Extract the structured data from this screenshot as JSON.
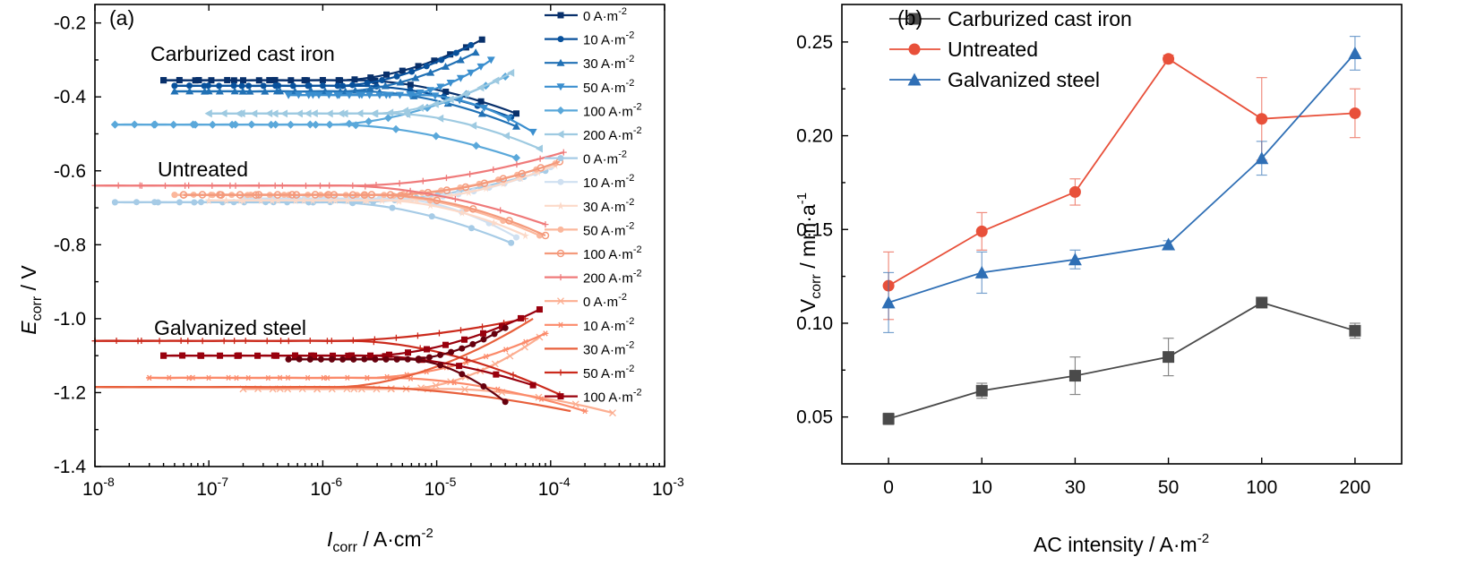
{
  "chart_data": [
    {
      "type": "line",
      "panel_label": "(a)",
      "xlabel_main": "I",
      "xlabel_sub": "corr",
      "xlabel_unit": " / A·cm",
      "xlabel_exp": "-2",
      "ylabel_main": "E",
      "ylabel_sub": "corr",
      "ylabel_unit": " / V",
      "x_scale": "log",
      "xlim": [
        1e-08,
        0.001
      ],
      "ylim": [
        -1.4,
        -0.15
      ],
      "x_ticks": [
        {
          "value": 1e-08,
          "base": "10",
          "exp": "-8"
        },
        {
          "value": 1e-07,
          "base": "10",
          "exp": "-7"
        },
        {
          "value": 1e-06,
          "base": "10",
          "exp": "-6"
        },
        {
          "value": 1e-05,
          "base": "10",
          "exp": "-5"
        },
        {
          "value": 0.0001,
          "base": "10",
          "exp": "-4"
        },
        {
          "value": 0.001,
          "base": "10",
          "exp": "-3"
        }
      ],
      "y_ticks": [
        {
          "value": -0.2,
          "label": "-0.2"
        },
        {
          "value": -0.4,
          "label": "-0.4"
        },
        {
          "value": -0.6,
          "label": "-0.6"
        },
        {
          "value": -0.8,
          "label": "-0.8"
        },
        {
          "value": -1.0,
          "label": "-1.0"
        },
        {
          "value": -1.2,
          "label": "-1.2"
        },
        {
          "value": -1.4,
          "label": "-1.4"
        }
      ],
      "legend_position": "right",
      "groups": [
        {
          "name": "Carburized cast iron",
          "label_anchor": [
            1.5e-08,
            -0.26
          ],
          "series": [
            {
              "label": "0 A·m",
              "exp": "-2",
              "color": "#08306b",
              "marker": "square",
              "icorr_min": 4e-08,
              "ecorr": -0.355,
              "anodic_end": [
                2.5e-05,
                -0.245
              ],
              "cathodic_end": [
                5e-05,
                -0.445
              ]
            },
            {
              "label": "10 A·m",
              "exp": "-2",
              "color": "#08519c",
              "marker": "circle",
              "icorr_min": 5e-08,
              "ecorr": -0.37,
              "anodic_end": [
                2e-05,
                -0.26
              ],
              "cathodic_end": [
                4.5e-05,
                -0.455
              ]
            },
            {
              "label": "30 A·m",
              "exp": "-2",
              "color": "#2171b5",
              "marker": "triangle-up",
              "icorr_min": 5e-08,
              "ecorr": -0.385,
              "anodic_end": [
                2.2e-05,
                -0.28
              ],
              "cathodic_end": [
                5e-05,
                -0.48
              ]
            },
            {
              "label": "50 A·m",
              "exp": "-2",
              "color": "#3b8fcf",
              "marker": "triangle-down",
              "icorr_min": 5e-07,
              "ecorr": -0.395,
              "anodic_end": [
                3e-05,
                -0.3
              ],
              "cathodic_end": [
                7e-05,
                -0.495
              ]
            },
            {
              "label": "100 A·m",
              "exp": "-2",
              "color": "#5aa8da",
              "marker": "diamond",
              "icorr_min": 1.5e-08,
              "ecorr": -0.475,
              "anodic_end": [
                4e-05,
                -0.345
              ],
              "cathodic_end": [
                5e-05,
                -0.565
              ]
            },
            {
              "label": "200 A·m",
              "exp": "-2",
              "color": "#9ecae1",
              "marker": "triangle-left",
              "icorr_min": 1e-07,
              "ecorr": -0.445,
              "anodic_end": [
                4.5e-05,
                -0.335
              ],
              "cathodic_end": [
                8e-05,
                -0.54
              ]
            }
          ]
        },
        {
          "name": "Untreated",
          "label_anchor": [
            1.8e-08,
            -0.57
          ],
          "series": [
            {
              "label": "0 A·m",
              "exp": "-2",
              "color": "#a6cbe6",
              "marker": "circle",
              "icorr_min": 1.5e-08,
              "ecorr": -0.685,
              "anodic_end": [
                9e-05,
                -0.6
              ],
              "cathodic_end": [
                4.5e-05,
                -0.795
              ]
            },
            {
              "label": "10 A·m",
              "exp": "-2",
              "color": "#cfe0f1",
              "marker": "circle",
              "icorr_min": 2e-07,
              "ecorr": -0.675,
              "anodic_end": [
                0.0001,
                -0.59
              ],
              "cathodic_end": [
                5e-05,
                -0.78
              ]
            },
            {
              "label": "30 A·m",
              "exp": "-2",
              "color": "#fcd9c8",
              "marker": "star",
              "icorr_min": 1e-07,
              "ecorr": -0.68,
              "anodic_end": [
                0.00011,
                -0.585
              ],
              "cathodic_end": [
                6e-05,
                -0.775
              ]
            },
            {
              "label": "50 A·m",
              "exp": "-2",
              "color": "#fbb79c",
              "marker": "circle",
              "icorr_min": 5e-08,
              "ecorr": -0.665,
              "anodic_end": [
                0.00011,
                -0.58
              ],
              "cathodic_end": [
                8e-05,
                -0.775
              ]
            },
            {
              "label": "100 A·m",
              "exp": "-2",
              "color": "#f49a7c",
              "marker": "circle-open",
              "icorr_min": 6e-08,
              "ecorr": -0.665,
              "anodic_end": [
                0.00012,
                -0.575
              ],
              "cathodic_end": [
                9e-05,
                -0.775
              ]
            },
            {
              "label": "200 A·m",
              "exp": "-2",
              "color": "#ef7a7a",
              "marker": "plus",
              "icorr_min": 1e-08,
              "ecorr": -0.64,
              "anodic_end": [
                0.00013,
                -0.55
              ],
              "cathodic_end": [
                9e-05,
                -0.745
              ]
            }
          ]
        },
        {
          "name": "Galvanized steel",
          "label_anchor": [
            1.8e-08,
            -1.02
          ],
          "series": [
            {
              "label": "0 A·m",
              "exp": "-2",
              "color": "#fcae91",
              "marker": "x",
              "icorr_min": 2e-07,
              "ecorr": -1.19,
              "anodic_end": [
                8e-05,
                -1.05
              ],
              "cathodic_end": [
                0.00035,
                -1.255
              ]
            },
            {
              "label": "10 A·m",
              "exp": "-2",
              "color": "#fb8a6a",
              "marker": "asterisk",
              "icorr_min": 3e-08,
              "ecorr": -1.16,
              "anodic_end": [
                9e-05,
                -1.04
              ],
              "cathodic_end": [
                0.0002,
                -1.25
              ]
            },
            {
              "label": "30 A·m",
              "exp": "-2",
              "color": "#e8603c",
              "marker": "line",
              "icorr_min": 1e-08,
              "ecorr": -1.185,
              "anodic_end": [
                7e-05,
                -1.0
              ],
              "cathodic_end": [
                0.00015,
                -1.25
              ]
            },
            {
              "label": "50 A·m",
              "exp": "-2",
              "color": "#cb2a1c",
              "marker": "plus",
              "icorr_min": 1e-08,
              "ecorr": -1.06,
              "anodic_end": [
                6e-05,
                -1.0
              ],
              "cathodic_end": [
                0.00012,
                -1.205
              ]
            },
            {
              "label": "100 A·m",
              "exp": "-2",
              "color": "#99000d",
              "marker": "square",
              "icorr_min": 4e-08,
              "ecorr": -1.1,
              "anodic_end": [
                8e-05,
                -0.975
              ],
              "cathodic_end": [
                7e-05,
                -1.18
              ]
            },
            {
              "label": "",
              "exp": "",
              "color": "#67000d",
              "marker": "circle",
              "icorr_min": 5e-07,
              "ecorr": -1.11,
              "anodic_end": [
                4e-05,
                -1.025
              ],
              "cathodic_end": [
                4e-05,
                -1.225
              ]
            }
          ]
        }
      ]
    },
    {
      "type": "line",
      "panel_label": "(b)",
      "categories": [
        "0",
        "10",
        "30",
        "50",
        "100",
        "200"
      ],
      "xlabel": "AC intensity / A·m",
      "xlabel_exp": "-2",
      "ylabel_main": "V",
      "ylabel_sub": "corr",
      "ylabel_unit": " / mm·a",
      "ylabel_exp": "-1",
      "ylim": [
        0.025,
        0.27
      ],
      "y_ticks": [
        {
          "value": 0.05,
          "label": "0.05"
        },
        {
          "value": 0.1,
          "label": "0.10"
        },
        {
          "value": 0.15,
          "label": "0.15"
        },
        {
          "value": 0.2,
          "label": "0.20"
        },
        {
          "value": 0.25,
          "label": "0.25"
        }
      ],
      "legend_position": "top-left",
      "series": [
        {
          "name": "Carburized cast iron",
          "color": "#4a4a4a",
          "marker": "square",
          "values": [
            0.049,
            0.064,
            0.072,
            0.082,
            0.111,
            0.096
          ],
          "errors": [
            0.003,
            0.004,
            0.01,
            0.01,
            0.002,
            0.004
          ]
        },
        {
          "name": "Untreated",
          "color": "#e8503a",
          "marker": "circle",
          "values": [
            0.12,
            0.149,
            0.17,
            0.241,
            0.209,
            0.212
          ],
          "errors": [
            0.018,
            0.01,
            0.007,
            0.002,
            0.022,
            0.013
          ]
        },
        {
          "name": "Galvanized steel",
          "color": "#2f6fb5",
          "marker": "triangle-up",
          "values": [
            0.111,
            0.127,
            0.134,
            0.142,
            0.188,
            0.244
          ],
          "errors": [
            0.016,
            0.011,
            0.005,
            0.002,
            0.009,
            0.009
          ]
        }
      ]
    }
  ]
}
